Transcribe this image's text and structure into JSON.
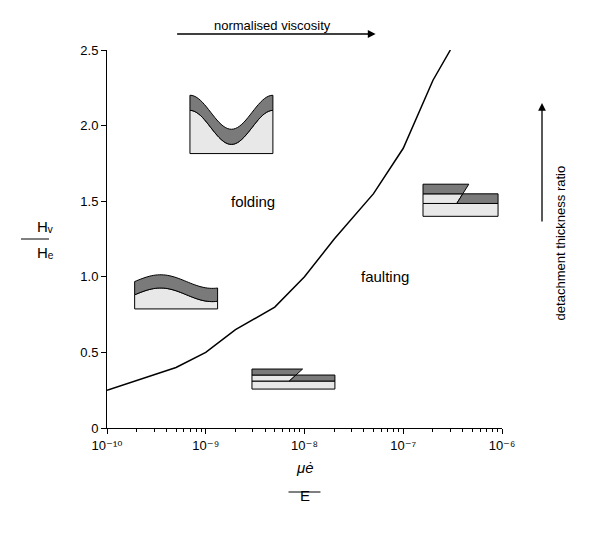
{
  "chart_data": {
    "type": "line",
    "x": [
      1e-10,
      5e-10,
      1e-09,
      2e-09,
      5e-09,
      1e-08,
      2e-08,
      5e-08,
      1e-07,
      2e-07,
      3e-07
    ],
    "values": [
      0.25,
      0.4,
      0.5,
      0.65,
      0.8,
      1.0,
      1.25,
      1.55,
      1.85,
      2.3,
      2.5
    ],
    "color": "#000000",
    "x_label": {
      "numerator": "μė",
      "denominator": "E"
    },
    "y_label": {
      "numerator": "Hᵥ",
      "denominator": "Hₑ"
    },
    "region_labels": [
      "folding",
      "faulting"
    ],
    "x_arrow_label": "normalised viscosity",
    "y_arrow_label": "detachment thickness ratio",
    "xlim": [
      1e-10,
      1e-06
    ],
    "ylim": [
      0,
      2.5
    ],
    "xticks": [
      {
        "value": 1e-10,
        "label": "10⁻¹⁰"
      },
      {
        "value": 1e-09,
        "label": "10⁻⁹"
      },
      {
        "value": 1e-08,
        "label": "10⁻⁸"
      },
      {
        "value": 1e-07,
        "label": "10⁻⁷"
      },
      {
        "value": 1e-06,
        "label": "10⁻⁶"
      }
    ],
    "yticks": [
      0,
      0.5,
      {
        "value": 1,
        "label": "1.0"
      },
      1.5,
      {
        "value": 2,
        "label": "2.0"
      },
      2.5
    ],
    "log": "x",
    "grid": false
  }
}
